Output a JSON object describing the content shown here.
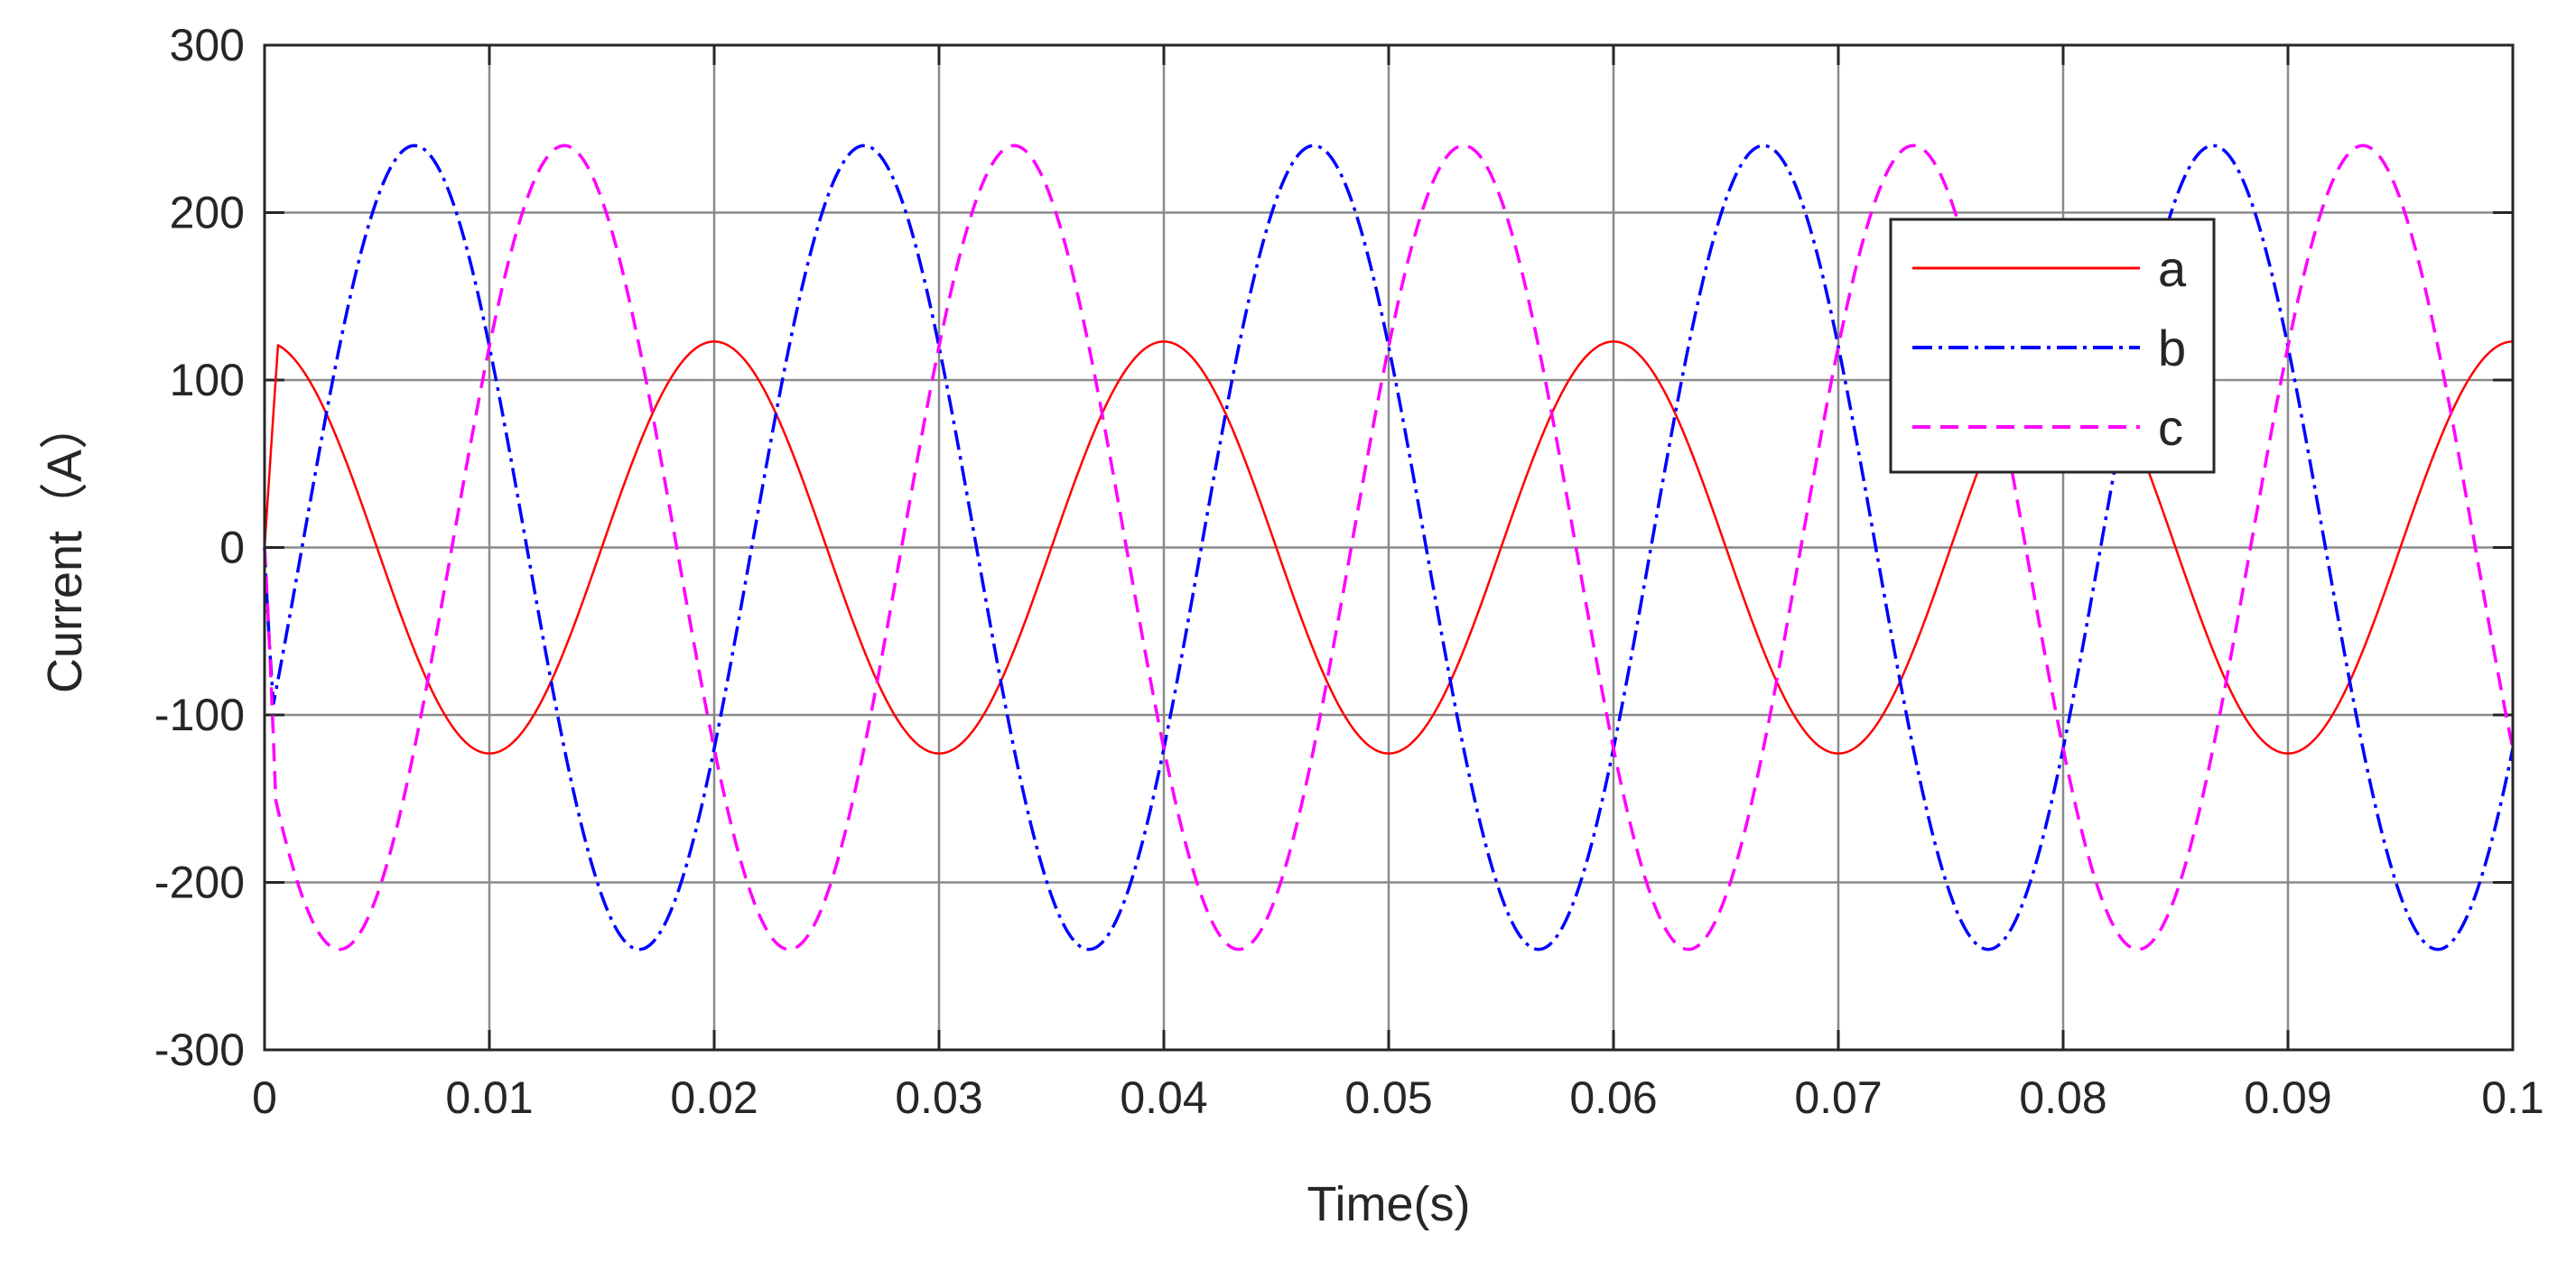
{
  "chart_data": {
    "type": "line",
    "title": "",
    "xlabel": "Time(s)",
    "ylabel": "Current（A）",
    "xlim": [
      0,
      0.1
    ],
    "ylim": [
      -300,
      300
    ],
    "xticks": [
      0,
      0.01,
      0.02,
      0.03,
      0.04,
      0.05,
      0.06,
      0.07,
      0.08,
      0.09,
      0.1
    ],
    "xtick_labels": [
      "0",
      "0.01",
      "0.02",
      "0.03",
      "0.04",
      "0.05",
      "0.06",
      "0.07",
      "0.08",
      "0.09",
      "0.1"
    ],
    "yticks": [
      300,
      200,
      100,
      0,
      -100,
      -200,
      -300
    ],
    "ytick_labels": [
      "300",
      "200",
      "100",
      "0",
      "-100",
      "-200",
      "-300"
    ],
    "grid": true,
    "legend_position": "top-right",
    "frequency_hz": 50,
    "sample_step_s": 5e-05,
    "series": [
      {
        "name": "a",
        "color": "#ff0000",
        "style": "solid",
        "amplitude": 123,
        "phase_deg": 90,
        "startup_ramp_s": 0.0006
      },
      {
        "name": "b",
        "color": "#0000ff",
        "style": "dashdot",
        "amplitude": 240,
        "phase_deg": -30,
        "startup_ramp_s": 0.0004
      },
      {
        "name": "c",
        "color": "#ff00ff",
        "style": "dashed",
        "amplitude": 240,
        "phase_deg": 210,
        "startup_ramp_s": 0.0005
      }
    ]
  }
}
